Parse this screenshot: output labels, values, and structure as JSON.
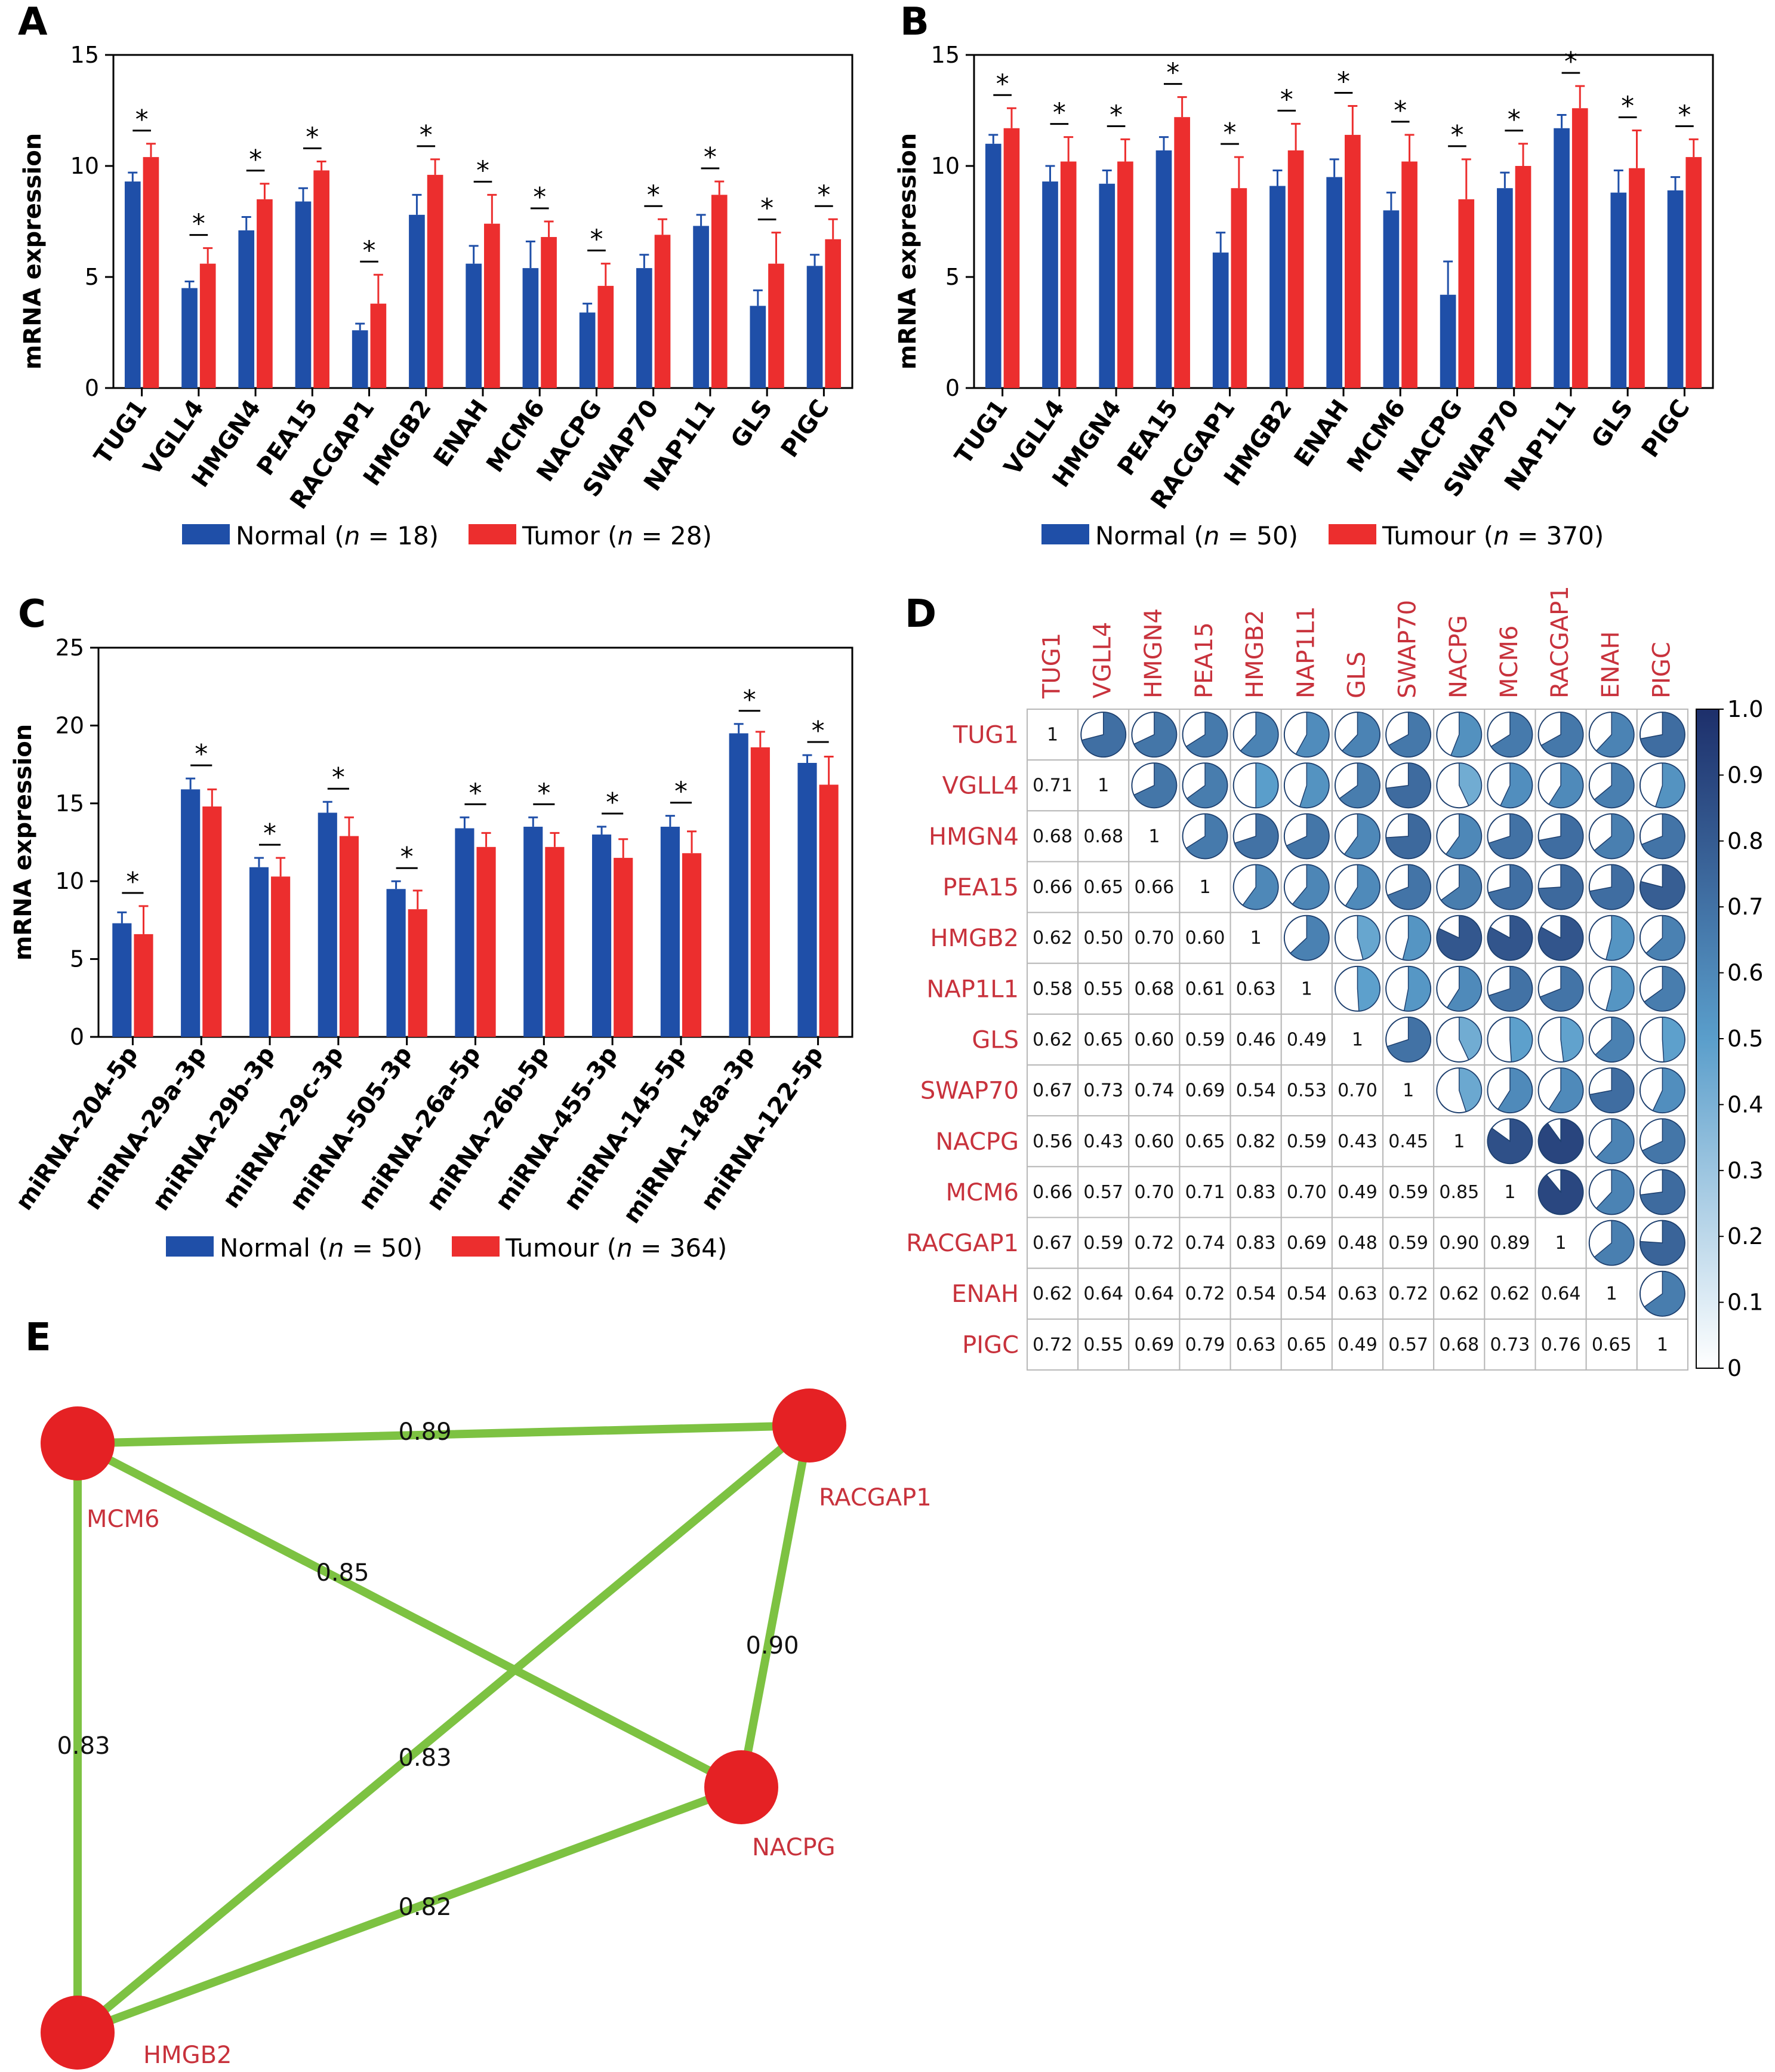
{
  "colors": {
    "normal": "#1f4fa8",
    "tumor": "#ec2e2e",
    "edge": "#7dc242",
    "node": "#e52124",
    "label_red": "#c8323c",
    "corr_low": "#ffffff",
    "corr_mid": "#5a9ecb",
    "corr_high": "#1d2f6b"
  },
  "chart_data": [
    {
      "id": "A",
      "panel_label": "A",
      "type": "bar",
      "ylabel": "mRNA expression",
      "ylim": [
        0,
        15
      ],
      "yticks": [
        0,
        5,
        10,
        15
      ],
      "categories": [
        "TUG1",
        "VGLL4",
        "HMGN4",
        "PEA15",
        "RACGAP1",
        "HMGB2",
        "ENAH",
        "MCM6",
        "NACPG",
        "SWAP70",
        "NAP1L1",
        "GLS",
        "PIGC"
      ],
      "series": [
        {
          "name": "Normal",
          "color": "normal",
          "values": [
            9.3,
            4.5,
            7.1,
            8.4,
            2.6,
            7.8,
            5.6,
            5.4,
            3.4,
            5.4,
            7.3,
            3.7,
            5.5
          ],
          "errors": [
            0.4,
            0.3,
            0.6,
            0.6,
            0.3,
            0.9,
            0.8,
            1.2,
            0.4,
            0.6,
            0.5,
            0.7,
            0.5
          ]
        },
        {
          "name": "Tumor",
          "color": "tumor",
          "values": [
            10.4,
            5.6,
            8.5,
            9.8,
            3.8,
            9.6,
            7.4,
            6.8,
            4.6,
            6.9,
            8.7,
            5.6,
            6.7
          ],
          "errors": [
            0.6,
            0.7,
            0.7,
            0.4,
            1.3,
            0.7,
            1.3,
            0.7,
            1.0,
            0.7,
            0.6,
            1.4,
            0.9
          ]
        }
      ],
      "significance": [
        "*",
        "*",
        "*",
        "*",
        "*",
        "*",
        "*",
        "*",
        "*",
        "*",
        "*",
        "*",
        "*"
      ],
      "legend": [
        {
          "label_pre": "Normal (",
          "n_sym": "n",
          "label_post": " = 18)",
          "color": "normal"
        },
        {
          "label_pre": "Tumor (",
          "n_sym": "n",
          "label_post": " = 28)",
          "color": "tumor"
        }
      ],
      "legend_position": "bottom"
    },
    {
      "id": "B",
      "panel_label": "B",
      "type": "bar",
      "ylabel": "mRNA expression",
      "ylim": [
        0,
        15
      ],
      "yticks": [
        0,
        5,
        10,
        15
      ],
      "categories": [
        "TUG1",
        "VGLL4",
        "HMGN4",
        "PEA15",
        "RACGAP1",
        "HMGB2",
        "ENAH",
        "MCM6",
        "NACPG",
        "SWAP70",
        "NAP1L1",
        "GLS",
        "PIGC"
      ],
      "series": [
        {
          "name": "Normal",
          "color": "normal",
          "values": [
            11.0,
            9.3,
            9.2,
            10.7,
            6.1,
            9.1,
            9.5,
            8.0,
            4.2,
            9.0,
            11.7,
            8.8,
            8.9
          ],
          "errors": [
            0.4,
            0.7,
            0.6,
            0.6,
            0.9,
            0.7,
            0.8,
            0.8,
            1.5,
            0.7,
            0.6,
            1.0,
            0.6
          ]
        },
        {
          "name": "Tumour",
          "color": "tumor",
          "values": [
            11.7,
            10.2,
            10.2,
            12.2,
            9.0,
            10.7,
            11.4,
            10.2,
            8.5,
            10.0,
            12.6,
            9.9,
            10.4
          ],
          "errors": [
            0.9,
            1.1,
            1.0,
            0.9,
            1.4,
            1.2,
            1.3,
            1.2,
            1.8,
            1.0,
            1.0,
            1.7,
            0.8
          ]
        }
      ],
      "significance": [
        "*",
        "*",
        "*",
        "*",
        "*",
        "*",
        "*",
        "*",
        "*",
        "*",
        "*",
        "*",
        "*"
      ],
      "legend": [
        {
          "label_pre": "Normal (",
          "n_sym": "n",
          "label_post": " = 50)",
          "color": "normal"
        },
        {
          "label_pre": "Tumour (",
          "n_sym": "n",
          "label_post": " = 370)",
          "color": "tumor"
        }
      ],
      "legend_position": "bottom"
    },
    {
      "id": "C",
      "panel_label": "C",
      "type": "bar",
      "ylabel": "mRNA expression",
      "ylim": [
        0,
        25
      ],
      "yticks": [
        0,
        5,
        10,
        15,
        20,
        25
      ],
      "categories": [
        "miRNA-204-5p",
        "miRNA-29a-3p",
        "miRNA-29b-3p",
        "miRNA-29c-3p",
        "miRNA-505-3p",
        "miRNA-26a-5p",
        "miRNA-26b-5p",
        "miRNA-455-3p",
        "miRNA-145-5p",
        "miRNA-148a-3p",
        "miRNA-122-5p"
      ],
      "series": [
        {
          "name": "Normal",
          "color": "normal",
          "values": [
            7.3,
            15.9,
            10.9,
            14.4,
            9.5,
            13.4,
            13.5,
            13.0,
            13.5,
            19.5,
            17.6
          ],
          "errors": [
            0.7,
            0.7,
            0.6,
            0.7,
            0.5,
            0.7,
            0.6,
            0.5,
            0.7,
            0.6,
            0.5
          ]
        },
        {
          "name": "Tumour",
          "color": "tumor",
          "values": [
            6.6,
            14.8,
            10.3,
            12.9,
            8.2,
            12.2,
            12.2,
            11.5,
            11.8,
            18.6,
            16.2
          ],
          "errors": [
            1.8,
            1.1,
            1.2,
            1.2,
            1.2,
            0.9,
            0.9,
            1.2,
            1.4,
            1.0,
            1.8
          ]
        }
      ],
      "significance": [
        "*",
        "*",
        "*",
        "*",
        "*",
        "*",
        "*",
        "*",
        "*",
        "*",
        "*"
      ],
      "legend": [
        {
          "label_pre": "Normal (",
          "n_sym": "n",
          "label_post": " = 50)",
          "color": "normal"
        },
        {
          "label_pre": "Tumour (",
          "n_sym": "n",
          "label_post": " = 364)",
          "color": "tumor"
        }
      ],
      "legend_position": "bottom"
    },
    {
      "id": "D",
      "panel_label": "D",
      "type": "heatmap",
      "labels": [
        "TUG1",
        "VGLL4",
        "HMGN4",
        "PEA15",
        "HMGB2",
        "NAP1L1",
        "GLS",
        "SWAP70",
        "NACPG",
        "MCM6",
        "RACGAP1",
        "ENAH",
        "PIGC"
      ],
      "lower_text": [
        [],
        [
          "0.71"
        ],
        [
          "0.68",
          "0.68"
        ],
        [
          "0.66",
          "0.65",
          "0.66"
        ],
        [
          "0.62",
          "0.50",
          "0.70",
          "0.60"
        ],
        [
          "0.58",
          "0.55",
          "0.68",
          "0.61",
          "0.63"
        ],
        [
          "0.62",
          "0.65",
          "0.60",
          "0.59",
          "0.46",
          "0.49"
        ],
        [
          "0.67",
          "0.73",
          "0.74",
          "0.69",
          "0.54",
          "0.53",
          "0.70"
        ],
        [
          "0.56",
          "0.43",
          "0.60",
          "0.65",
          "0.82",
          "0.59",
          "0.43",
          "0.45"
        ],
        [
          "0.66",
          "0.57",
          "0.70",
          "0.71",
          "0.83",
          "0.70",
          "0.49",
          "0.59",
          "0.85"
        ],
        [
          "0.67",
          "0.59",
          "0.72",
          "0.74",
          "0.83",
          "0.69",
          "0.48",
          "0.59",
          "0.90",
          "0.89"
        ],
        [
          "0.62",
          "0.64",
          "0.64",
          "0.72",
          "0.54",
          "0.54",
          "0.63",
          "0.72",
          "0.62",
          "0.62",
          "0.64"
        ],
        [
          "0.72",
          "0.55",
          "0.69",
          "0.79",
          "0.63",
          "0.65",
          "0.49",
          "0.57",
          "0.68",
          "0.73",
          "0.76",
          "0.65"
        ]
      ],
      "diagonal": "1",
      "upper_glyph": "pie",
      "colorbar": {
        "ticks": [
          "0",
          "0.1",
          "0.2",
          "0.3",
          "0.4",
          "0.5",
          "0.6",
          "0.7",
          "0.8",
          "0.9",
          "1.0"
        ],
        "range": [
          0,
          1
        ]
      }
    },
    {
      "id": "E",
      "panel_label": "E",
      "type": "network",
      "nodes": [
        {
          "id": "MCM6",
          "label": "MCM6"
        },
        {
          "id": "RACGAP1",
          "label": "RACGAP1"
        },
        {
          "id": "NACPG",
          "label": "NACPG"
        },
        {
          "id": "HMGB2",
          "label": "HMGB2"
        }
      ],
      "edges": [
        {
          "from": "MCM6",
          "to": "RACGAP1",
          "weight": "0.89"
        },
        {
          "from": "MCM6",
          "to": "NACPG",
          "weight": "0.85"
        },
        {
          "from": "RACGAP1",
          "to": "NACPG",
          "weight": "0.90"
        },
        {
          "from": "MCM6",
          "to": "HMGB2",
          "weight": "0.83"
        },
        {
          "from": "HMGB2",
          "to": "RACGAP1",
          "weight": "0.83"
        },
        {
          "from": "HMGB2",
          "to": "NACPG",
          "weight": "0.82"
        }
      ]
    }
  ]
}
